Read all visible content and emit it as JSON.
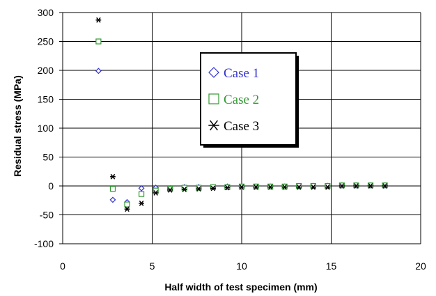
{
  "chart_data": {
    "type": "scatter",
    "title": "",
    "xlabel": "Half width of test specimen (mm)",
    "ylabel": "Residual stress (MPa)",
    "xlim": [
      0,
      20
    ],
    "ylim": [
      -100,
      300
    ],
    "x_ticks": [
      "0",
      "5",
      "10",
      "15",
      "20"
    ],
    "y_ticks": [
      "-100",
      "-50",
      "0",
      "50",
      "100",
      "150",
      "200",
      "250",
      "300"
    ],
    "grid": true,
    "legend_position": "center",
    "series": [
      {
        "name": "Case 1",
        "marker": "diamond",
        "color": "#3333cc",
        "x": [
          2.0,
          2.8,
          3.6,
          4.4,
          5.2,
          6.0,
          6.8,
          7.6,
          8.4,
          9.2,
          10.0,
          10.8,
          11.6,
          12.4,
          13.2,
          14.0,
          14.8,
          15.6,
          16.4,
          17.2,
          18.0
        ],
        "y": [
          199,
          -24,
          -28,
          -4,
          -3,
          -4,
          -2,
          -2,
          -2,
          -1,
          -1,
          -1,
          -1,
          -1,
          -1,
          0,
          0,
          1,
          1,
          1,
          1
        ]
      },
      {
        "name": "Case 2",
        "marker": "square",
        "color": "#339933",
        "x": [
          2.0,
          2.8,
          3.6,
          4.4,
          5.2,
          6.0,
          6.8,
          7.6,
          8.4,
          9.2,
          10.0,
          10.8,
          11.6,
          12.4,
          13.2,
          14.0,
          14.8,
          15.6,
          16.4,
          17.2,
          18.0
        ],
        "y": [
          250,
          -5,
          -32,
          -14,
          -8,
          -5,
          -3,
          -3,
          -2,
          -2,
          -1,
          -1,
          -1,
          -1,
          0,
          0,
          0,
          1,
          1,
          1,
          1
        ]
      },
      {
        "name": "Case 3",
        "marker": "asterisk",
        "color": "#000000",
        "x": [
          2.0,
          2.8,
          3.6,
          4.4,
          5.2,
          6.0,
          6.8,
          7.6,
          8.4,
          9.2,
          10.0,
          10.8,
          11.6,
          12.4,
          13.2,
          14.0,
          14.8,
          15.6,
          16.4,
          17.2,
          18.0
        ],
        "y": [
          287,
          16,
          -40,
          -30,
          -12,
          -7,
          -6,
          -5,
          -4,
          -3,
          -2,
          -2,
          -2,
          -2,
          -2,
          -2,
          -2,
          0,
          0,
          0,
          0
        ]
      }
    ]
  }
}
